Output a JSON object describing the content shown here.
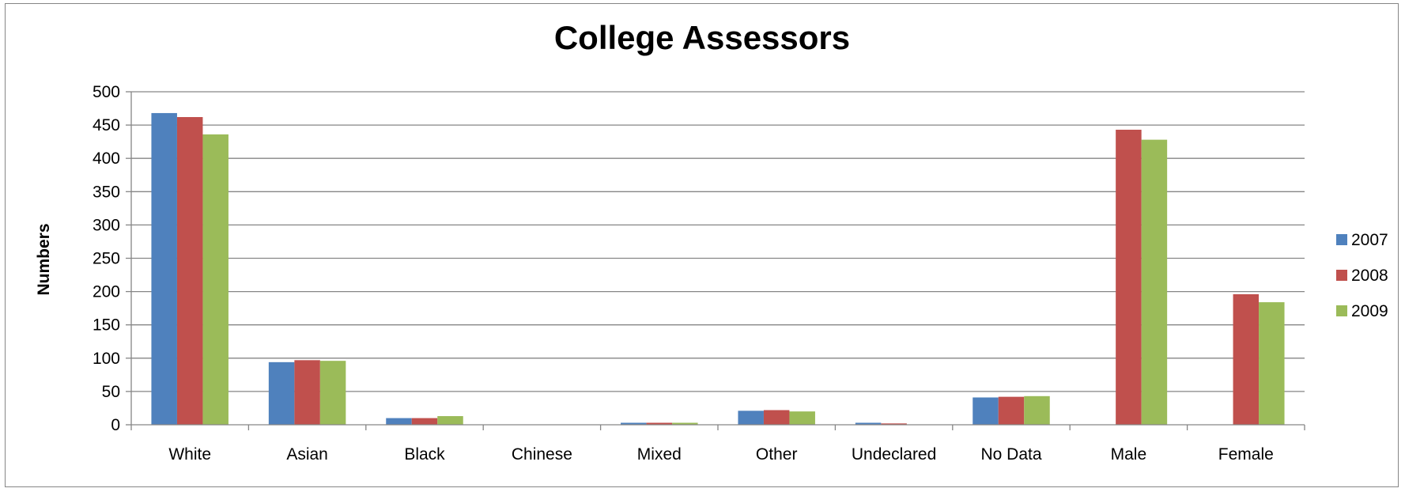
{
  "chart_data": {
    "type": "bar",
    "title": "College Assessors",
    "xlabel": "",
    "ylabel": "Numbers",
    "ylim": [
      0,
      500
    ],
    "yticks": [
      0,
      50,
      100,
      150,
      200,
      250,
      300,
      350,
      400,
      450,
      500
    ],
    "grid": true,
    "legend_position": "right",
    "categories": [
      "White",
      "Asian",
      "Black",
      "Chinese",
      "Mixed",
      "Other",
      "Undeclared",
      "No Data",
      "Male",
      "Female"
    ],
    "series": [
      {
        "name": "2007",
        "color": "#4F81BD",
        "values": [
          468,
          94,
          10,
          0,
          3,
          21,
          3,
          41,
          0,
          0
        ]
      },
      {
        "name": "2008",
        "color": "#C0504D",
        "values": [
          462,
          97,
          10,
          0,
          3,
          22,
          2,
          42,
          443,
          196
        ]
      },
      {
        "name": "2009",
        "color": "#9BBB59",
        "values": [
          436,
          96,
          13,
          0,
          3,
          20,
          0,
          43,
          428,
          184
        ]
      }
    ]
  }
}
